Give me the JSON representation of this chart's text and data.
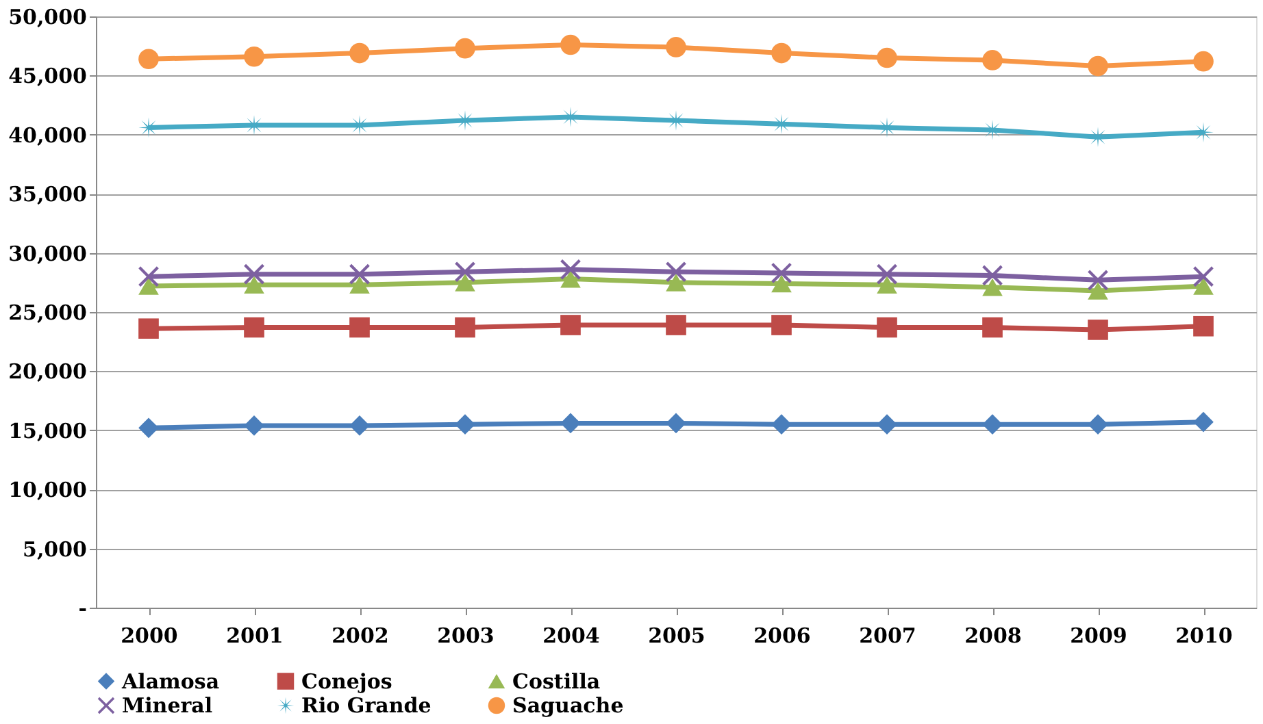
{
  "chart_data": {
    "type": "line",
    "categories": [
      "2000",
      "2001",
      "2002",
      "2003",
      "2004",
      "2005",
      "2006",
      "2007",
      "2008",
      "2009",
      "2010"
    ],
    "series": [
      {
        "name": "Alamosa",
        "color": "#4a7ebb",
        "marker": "diamond",
        "values": [
          15200,
          15400,
          15400,
          15500,
          15600,
          15600,
          15500,
          15500,
          15500,
          15500,
          15700
        ]
      },
      {
        "name": "Conejos",
        "color": "#be4b48",
        "marker": "square",
        "values": [
          23600,
          23700,
          23700,
          23700,
          23900,
          23900,
          23900,
          23700,
          23700,
          23500,
          23800
        ]
      },
      {
        "name": "Costilla",
        "color": "#98b954",
        "marker": "triangle",
        "values": [
          27200,
          27300,
          27300,
          27500,
          27800,
          27500,
          27400,
          27300,
          27100,
          26800,
          27200
        ]
      },
      {
        "name": "Mineral",
        "color": "#7d60a0",
        "marker": "cross",
        "values": [
          28000,
          28200,
          28200,
          28400,
          28600,
          28400,
          28300,
          28200,
          28100,
          27700,
          28000
        ]
      },
      {
        "name": "Rio Grande",
        "color": "#46aac5",
        "marker": "star",
        "values": [
          40600,
          40800,
          40800,
          41200,
          41500,
          41200,
          40900,
          40600,
          40400,
          39800,
          40200
        ]
      },
      {
        "name": "Saguache",
        "color": "#f79646",
        "marker": "circle",
        "values": [
          46400,
          46600,
          46900,
          47300,
          47600,
          47400,
          46900,
          46500,
          46300,
          45800,
          46200
        ]
      }
    ],
    "ylim": [
      0,
      50000
    ],
    "yticks": [
      {
        "value": 0,
        "label": "-"
      },
      {
        "value": 5000,
        "label": "5,000"
      },
      {
        "value": 10000,
        "label": "10,000"
      },
      {
        "value": 15000,
        "label": "15,000"
      },
      {
        "value": 20000,
        "label": "20,000"
      },
      {
        "value": 25000,
        "label": "25,000"
      },
      {
        "value": 30000,
        "label": "30,000"
      },
      {
        "value": 35000,
        "label": "35,000"
      },
      {
        "value": 40000,
        "label": "40,000"
      },
      {
        "value": 45000,
        "label": "45,000"
      },
      {
        "value": 50000,
        "label": "50,000"
      }
    ],
    "grid": "y",
    "legend": "bottom",
    "line_style": "solid"
  }
}
